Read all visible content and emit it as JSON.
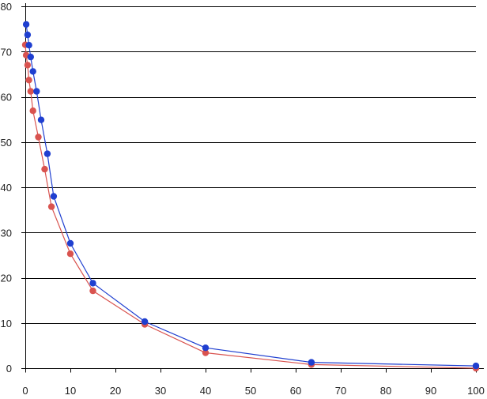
{
  "chart_data": {
    "type": "scatter",
    "xlim": [
      0,
      100
    ],
    "ylim": [
      0,
      80
    ],
    "xticks": [
      0,
      10,
      20,
      30,
      40,
      50,
      60,
      70,
      80,
      90,
      100
    ],
    "yticks": [
      0,
      10,
      20,
      30,
      40,
      50,
      60,
      70,
      80
    ],
    "grid": "horizontal",
    "legend": "none",
    "title": "",
    "xlabel": "",
    "ylabel": "",
    "series": [
      {
        "color": "#1f3fd0",
        "line": true,
        "x": [
          0.2,
          0.5,
          0.8,
          1.2,
          1.7,
          2.5,
          3.5,
          4.9,
          6.3,
          10.0,
          15.0,
          26.5,
          40.0,
          63.5,
          100.0
        ],
        "y": [
          76.0,
          73.7,
          71.4,
          68.8,
          65.6,
          61.2,
          54.9,
          47.4,
          38.0,
          27.6,
          18.8,
          10.3,
          4.5,
          1.3,
          0.5
        ]
      },
      {
        "color": "#d9534f",
        "line": true,
        "x": [
          0.0,
          0.2,
          0.5,
          0.8,
          1.2,
          1.7,
          2.9,
          4.3,
          5.8,
          10.0,
          15.0,
          26.5,
          40.0,
          63.5,
          100.0
        ],
        "y": [
          71.5,
          69.2,
          67.0,
          63.7,
          61.2,
          56.9,
          51.1,
          44.0,
          35.7,
          25.3,
          17.1,
          9.7,
          3.4,
          0.8,
          0.0
        ]
      }
    ]
  }
}
